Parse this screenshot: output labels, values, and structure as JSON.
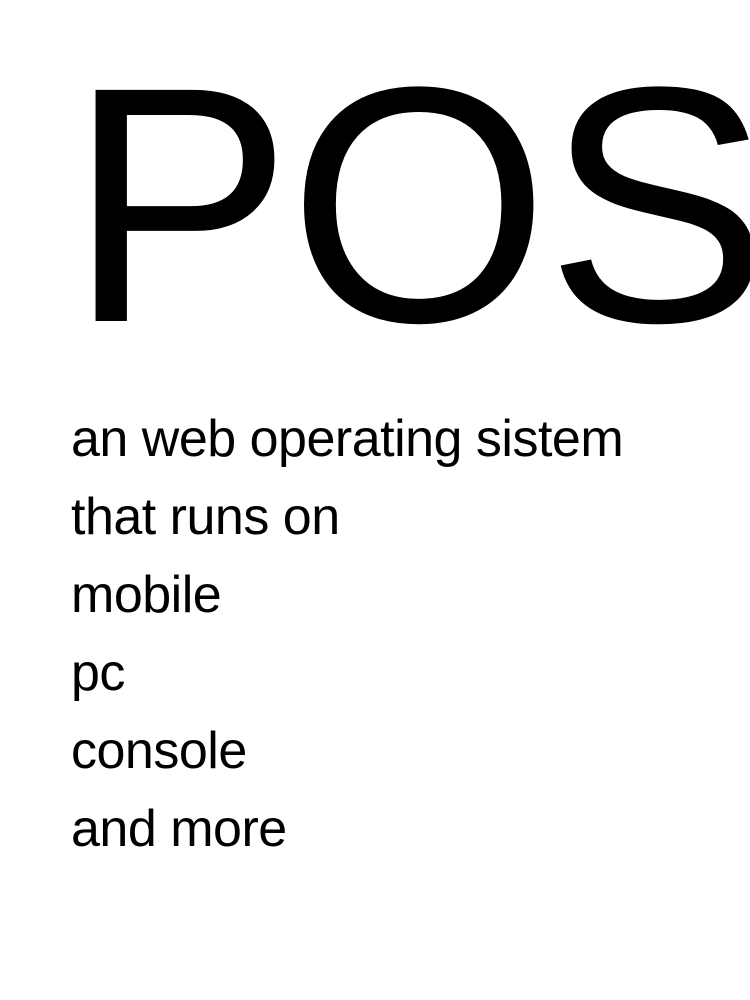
{
  "title": "POS",
  "lines": [
    "an web operating sistem",
    "that runs on",
    "mobile",
    "pc",
    "console",
    "and more"
  ]
}
